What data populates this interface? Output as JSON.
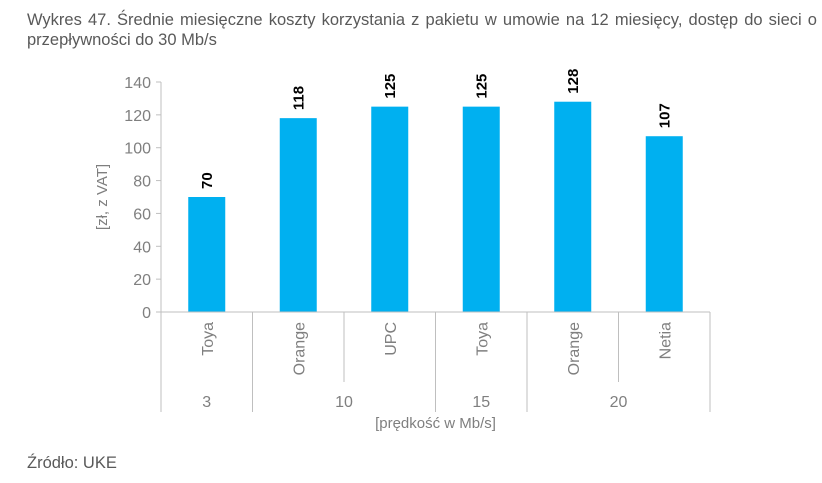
{
  "title": "Wykres 47. Średnie miesięczne koszty korzystania z pakietu w umowie na 12 miesięcy, dostęp do sieci o przepływności do 30 Mb/s",
  "source": "Źródło: UKE",
  "colors": {
    "bar": "#00b0f0",
    "axis": "#bfbfbf",
    "text": "#595959",
    "tick": "#7f7f7f"
  },
  "chart_data": {
    "type": "bar",
    "title": "Wykres 47. Średnie miesięczne koszty korzystania z pakietu w umowie na 12 miesięcy, dostęp do sieci o przepływności do 30 Mb/s",
    "xlabel": "[prędkość w Mb/s]",
    "ylabel": "[zł, z VAT]",
    "ylim": [
      0,
      140
    ],
    "yticks": [
      0,
      20,
      40,
      60,
      80,
      100,
      120,
      140
    ],
    "categories": [
      "Toya",
      "Orange",
      "UPC",
      "Toya",
      "Orange",
      "Netia"
    ],
    "groups": [
      {
        "label": "3",
        "span": 1
      },
      {
        "label": "10",
        "span": 2
      },
      {
        "label": "15",
        "span": 1
      },
      {
        "label": "20",
        "span": 2
      }
    ],
    "values": [
      70,
      118,
      125,
      125,
      128,
      107
    ],
    "data_labels": true,
    "grid": false,
    "legend": null
  }
}
